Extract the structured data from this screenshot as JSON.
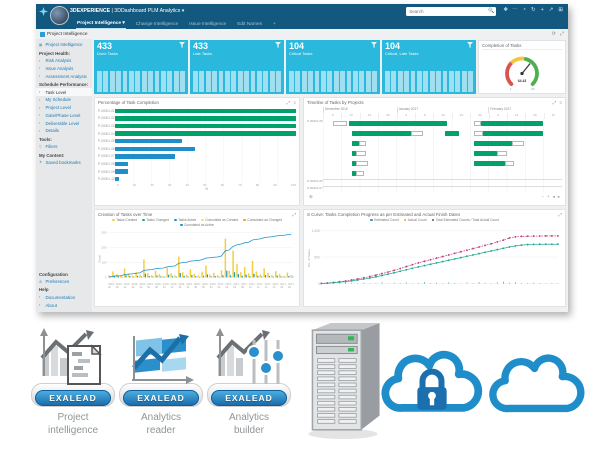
{
  "window": {
    "brand_bold": "3DEXPERIENCE",
    "brand_rest": " | 3DDashboard PLM Analytics",
    "brand_caret": "▾",
    "search_placeholder": "Search",
    "header_icons": [
      "⋯",
      "◔",
      "↻",
      "+",
      "↗",
      "⊞"
    ],
    "header_icon_names": [
      "more-icon",
      "user-icon",
      "history-icon",
      "add-icon",
      "share-icon",
      "apps-icon"
    ]
  },
  "tabs": [
    {
      "label": "Project Intelligence",
      "caret": "▾",
      "active": true
    },
    {
      "label": "Change Intelligence"
    },
    {
      "label": "Issue Intelligence"
    },
    {
      "label": "Edit Names"
    },
    {
      "label": "+"
    }
  ],
  "breadcrumb": {
    "label": "Project Intelligence"
  },
  "crumb_tools": [
    "⟳",
    "⤢"
  ],
  "sidebar": {
    "sections": [
      {
        "items": [
          {
            "label": "Project Intelligence",
            "icon": "▦"
          }
        ]
      },
      {
        "header": "Project Health:",
        "items": [
          {
            "label": "Risk Analysis",
            "icon": "▪"
          },
          {
            "label": "Issue Analysis",
            "icon": "▪"
          },
          {
            "label": "Assessment Analysis",
            "icon": "▪"
          }
        ]
      },
      {
        "header": "Schedule Performance:",
        "items": [
          {
            "label": "Task Level",
            "icon": "▪",
            "active": true
          },
          {
            "label": "My Schedule",
            "icon": "▪"
          },
          {
            "label": "Project Level",
            "icon": "▪"
          },
          {
            "label": "Gate/Phase Level",
            "icon": "▪"
          },
          {
            "label": "Deliverable Level",
            "icon": "▪"
          }
        ]
      },
      {
        "items": [
          {
            "label": "Details",
            "icon": "▪"
          }
        ]
      },
      {
        "header": "Tools:",
        "items": [
          {
            "label": "Filters",
            "icon": "▽"
          }
        ]
      },
      {
        "header": "My Content:",
        "items": [
          {
            "label": "Saved bookmarks",
            "icon": "★"
          }
        ]
      },
      {
        "header": "Configuration",
        "bottom": true,
        "items": [
          {
            "label": "Preferences",
            "icon": "⚙"
          }
        ]
      },
      {
        "header": "Help",
        "items": [
          {
            "label": "Documentation",
            "icon": "▪"
          },
          {
            "label": "About",
            "icon": "▪"
          }
        ]
      }
    ]
  },
  "kpis": [
    {
      "value": "433",
      "label": "Done Tasks"
    },
    {
      "value": "433",
      "label": "Late Tasks"
    },
    {
      "value": "104",
      "label": "Critical Tasks"
    },
    {
      "value": "104",
      "label": "Critical, Late Tasks"
    }
  ],
  "kpi_spark_bar_count": 14,
  "gauge": {
    "title": "Completion of Tasks",
    "value": "64.43",
    "percent": 64.43,
    "min": "0",
    "max": "100",
    "segments": [
      "#d9534f",
      "#f5c63d",
      "#4caf50"
    ]
  },
  "widget_icons": {
    "expand": "⤢",
    "menu": "≡",
    "zoom": "⊕"
  },
  "chart_data": {
    "completion": {
      "type": "bar",
      "title": "Percentage of Task Completion",
      "categories": [
        "P-00001-01",
        "P-00001-02",
        "P-00001-03",
        "P-00001-04",
        "P-00001-05",
        "P-00001-06",
        "P-00001-07",
        "P-00001-08",
        "P-00001-09",
        "P-00001-10"
      ],
      "values": [
        100,
        100,
        100,
        100,
        37,
        44,
        33,
        7,
        7,
        2
      ],
      "bar_colors": [
        "green",
        "green",
        "green",
        "green",
        "blue",
        "blue",
        "blue",
        "blue",
        "blue",
        "blue"
      ],
      "ticks": [
        "0",
        "10",
        "20",
        "30",
        "40",
        "50",
        "60",
        "70",
        "80",
        "90",
        "100"
      ],
      "xlabel": "%",
      "xlim": [
        0,
        100
      ]
    },
    "timeline": {
      "type": "gantt",
      "title": "Timeline of Tasks by Projects",
      "months": [
        {
          "label": "December 2016",
          "weeks": 4
        },
        {
          "label": "January 2017",
          "weeks": 5
        },
        {
          "label": "February 2017",
          "weeks": 4
        }
      ],
      "days": [
        "5",
        "12",
        "19",
        "26",
        "2",
        "9",
        "16",
        "23",
        "30",
        "6",
        "13",
        "20",
        "27"
      ],
      "lanes": [
        {
          "label": "P-00001-05",
          "bars": [
            {
              "s": 4,
              "w": 6,
              "t": "w"
            },
            {
              "s": 11,
              "w": 41,
              "t": "g"
            },
            {
              "s": 63,
              "w": 3,
              "t": "w"
            },
            {
              "s": 66,
              "w": 26,
              "t": "g"
            }
          ]
        },
        {
          "bars": [
            {
              "s": 12,
              "w": 25,
              "t": "g"
            },
            {
              "s": 37,
              "w": 5,
              "t": "w"
            },
            {
              "s": 51,
              "w": 6,
              "t": "g"
            },
            {
              "s": 63,
              "w": 4,
              "t": "w"
            },
            {
              "s": 67,
              "w": 25,
              "t": "g"
            }
          ]
        },
        {
          "bars": [
            {
              "s": 12,
              "w": 3,
              "t": "g"
            },
            {
              "s": 15,
              "w": 3,
              "t": "w"
            },
            {
              "s": 63,
              "w": 16,
              "t": "g"
            },
            {
              "s": 79,
              "w": 5,
              "t": "w"
            }
          ]
        },
        {
          "bars": [
            {
              "s": 12,
              "w": 2,
              "t": "g"
            },
            {
              "s": 14,
              "w": 4,
              "t": "w"
            },
            {
              "s": 63,
              "w": 10,
              "t": "g"
            },
            {
              "s": 73,
              "w": 4,
              "t": "w"
            }
          ]
        },
        {
          "bars": [
            {
              "s": 12,
              "w": 2,
              "t": "g"
            },
            {
              "s": 14,
              "w": 5,
              "t": "w"
            },
            {
              "s": 63,
              "w": 13,
              "t": "g"
            },
            {
              "s": 76,
              "w": 4,
              "t": "w"
            }
          ]
        },
        {
          "bars": [
            {
              "s": 12,
              "w": 2,
              "t": "g"
            },
            {
              "s": 14,
              "w": 3,
              "t": "w"
            }
          ]
        },
        {
          "label": "P-00001-06",
          "thin": true,
          "bars": []
        },
        {
          "label": "P-00001-07",
          "thin": true,
          "bars": []
        }
      ],
      "controls": [
        "−",
        "+",
        "◂",
        "▸"
      ]
    },
    "creation": {
      "type": "combo",
      "title": "Creation of Tasks over Time",
      "legend": [
        {
          "label": "Tasks Created",
          "color": "#f3cf3a"
        },
        {
          "label": "Tasks Changed",
          "color": "#22a793"
        },
        {
          "label": "Tasks Active",
          "color": "#1f8fc9"
        },
        {
          "label": "Cumulated as Created",
          "color": "#f5e06e"
        },
        {
          "label": "Cumulated as Changed",
          "color": "#f0a022"
        },
        {
          "label": "Cumulated as Active",
          "color": "#1f8fc9"
        }
      ],
      "ylabel": "Count",
      "yticks": [
        "300",
        "200",
        "100",
        "0"
      ],
      "ymax": 300,
      "bars_created": [
        15,
        40,
        20,
        10,
        60,
        25,
        12,
        35,
        18,
        120,
        30,
        15,
        45,
        22,
        10,
        65,
        28,
        14,
        140,
        35,
        18,
        55,
        25,
        12,
        38,
        80,
        20,
        30,
        15,
        48,
        260,
        45,
        180,
        90,
        35,
        70,
        28,
        110,
        40,
        20,
        60,
        30,
        15,
        42,
        22,
        10,
        32,
        16
      ],
      "bars_secondary": [
        5,
        12,
        8,
        4,
        15,
        9,
        5,
        10,
        6,
        25,
        9,
        5,
        13,
        7,
        4,
        18,
        8,
        5,
        30,
        10,
        6,
        15,
        8,
        4,
        11,
        20,
        6,
        9,
        5,
        14,
        45,
        13,
        35,
        22,
        10,
        18,
        8,
        24,
        11,
        6,
        16,
        9,
        5,
        12,
        7,
        4,
        9,
        5
      ],
      "xlabels": [
        "2016-26",
        "2016-28",
        "2016-30",
        "2016-32",
        "2016-34",
        "2016-36",
        "2016-38",
        "2016-40",
        "2016-42",
        "2016-44",
        "2016-46",
        "2016-48",
        "2016-50",
        "2016-52",
        "2017-02",
        "2017-04",
        "2017-06",
        "2017-08",
        "2017-10",
        "2017-12",
        "2017-14",
        "2017-16",
        "2017-18",
        "2017-20"
      ]
    },
    "scurve": {
      "type": "line",
      "title": "S Curve: Tasks Completion Progress as per Estimated and Actual Finish Dates",
      "legend": [
        {
          "label": "Estimated Count",
          "color": "#2a9bbf"
        },
        {
          "label": "Actual Count",
          "color": "#f0a022"
        },
        {
          "label": "Total Estimated Counts / Total Actual Count",
          "color": "#555555"
        }
      ],
      "ylabel": "No. of Tasks",
      "yticks": [
        "1,000",
        "500",
        "0"
      ],
      "ymax": 1000,
      "series": [
        {
          "name": "Total Estimated Count",
          "color": "#c2417f",
          "dashed": true,
          "values": [
            5,
            12,
            22,
            35,
            50,
            68,
            88,
            110,
            134,
            160,
            188,
            218,
            250,
            284,
            320,
            356,
            390,
            420,
            450,
            480,
            510,
            540,
            570,
            600,
            630,
            660,
            690,
            720,
            750,
            785,
            820,
            860,
            880,
            890,
            893,
            895,
            896,
            897,
            897,
            898
          ]
        },
        {
          "name": "Total Actual Count",
          "color": "#22a793",
          "dashed": false,
          "values": [
            3,
            8,
            16,
            26,
            38,
            52,
            68,
            86,
            106,
            128,
            152,
            178,
            205,
            232,
            260,
            288,
            315,
            340,
            365,
            390,
            415,
            440,
            465,
            490,
            515,
            540,
            565,
            590,
            615,
            640,
            665,
            690,
            710,
            725,
            735,
            740,
            742,
            743,
            743,
            743
          ]
        }
      ],
      "baseline_markers": [
        10,
        5,
        15,
        8,
        20,
        12,
        6,
        18,
        9,
        14,
        25,
        7,
        16,
        10,
        22,
        8,
        13,
        30,
        11,
        17,
        9,
        24,
        14,
        6,
        19,
        12,
        28,
        15,
        8,
        21,
        35,
        18,
        26,
        13,
        9,
        16,
        11,
        7,
        14,
        10
      ]
    }
  },
  "products": [
    {
      "badge": "EXALEAD",
      "line1": "Project",
      "line2": "intelligence"
    },
    {
      "badge": "EXALEAD",
      "line1": "Analytics",
      "line2": "reader"
    },
    {
      "badge": "EXALEAD",
      "line1": "Analytics",
      "line2": "builder"
    }
  ],
  "colors": {
    "header": "#12587f",
    "cyan": "#2ab8dc",
    "green": "#00a26c",
    "blue": "#1f8fc9",
    "link": "#1d7ab5",
    "pink": "#c2417f",
    "teal": "#22a793",
    "yellow": "#f3cf3a",
    "orange": "#f0a022",
    "cloud": "#1f8dc9",
    "lock": "#1b6fae"
  }
}
